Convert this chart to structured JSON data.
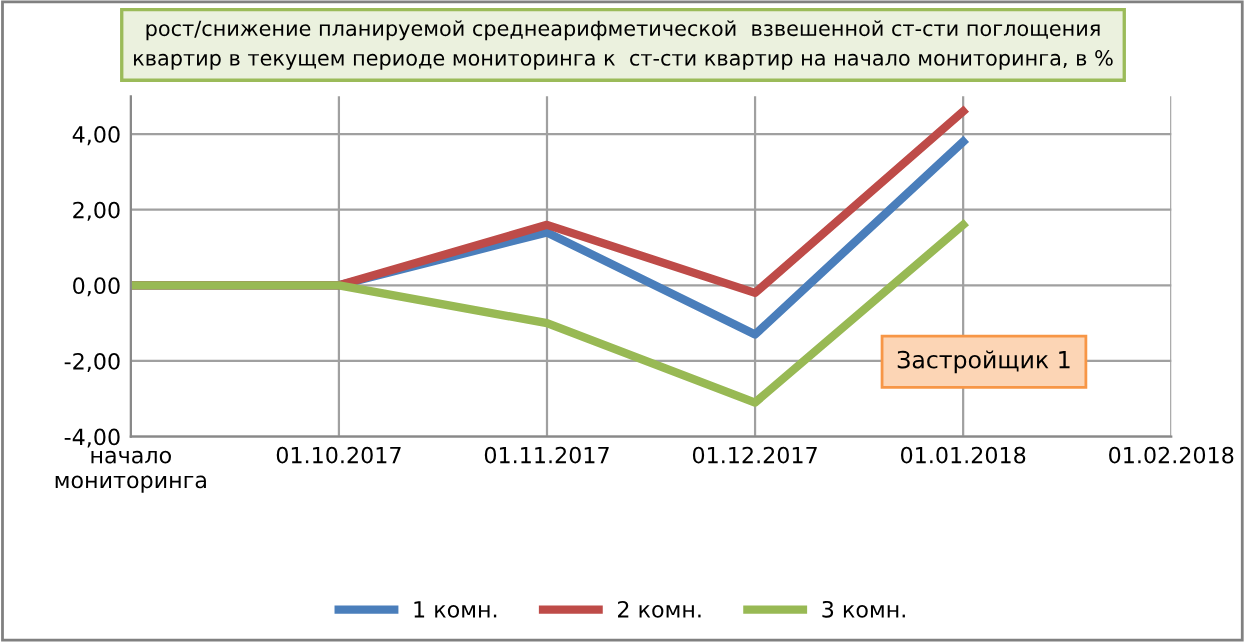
{
  "chart_data": {
    "type": "line",
    "title": "рост/снижение планируемой среднеарифметической  взвешенной ст-сти поглощения\nквартир в текущем периоде мониторинга к  ст-сти квартир на начало мониторинга, в %",
    "categories": [
      "начало\nмониторинга",
      "01.10.2017",
      "01.11.2017",
      "01.12.2017",
      "01.01.2018",
      "01.02.2018"
    ],
    "series": [
      {
        "name": "1 комн.",
        "color": "#4a7ebb",
        "values": [
          0,
          0,
          1.4,
          -1.3,
          3.8,
          null
        ]
      },
      {
        "name": "2 комн.",
        "color": "#be4b48",
        "values": [
          0,
          0,
          1.6,
          -0.2,
          4.6,
          null
        ]
      },
      {
        "name": "3 комн.",
        "color": "#98b954",
        "values": [
          0,
          0,
          -1.0,
          -3.1,
          1.6,
          null
        ]
      }
    ],
    "annotations": [
      "Застройщик 1"
    ],
    "ylim": [
      -4,
      5
    ],
    "yticks": [
      {
        "value": -4,
        "label": "-4,00"
      },
      {
        "value": -2,
        "label": "-2,00"
      },
      {
        "value": 0,
        "label": "0,00"
      },
      {
        "value": 2,
        "label": "2,00"
      },
      {
        "value": 4,
        "label": "4,00"
      }
    ],
    "grid": true,
    "legend": "bottom",
    "marker": "none",
    "line_style": "solid"
  }
}
